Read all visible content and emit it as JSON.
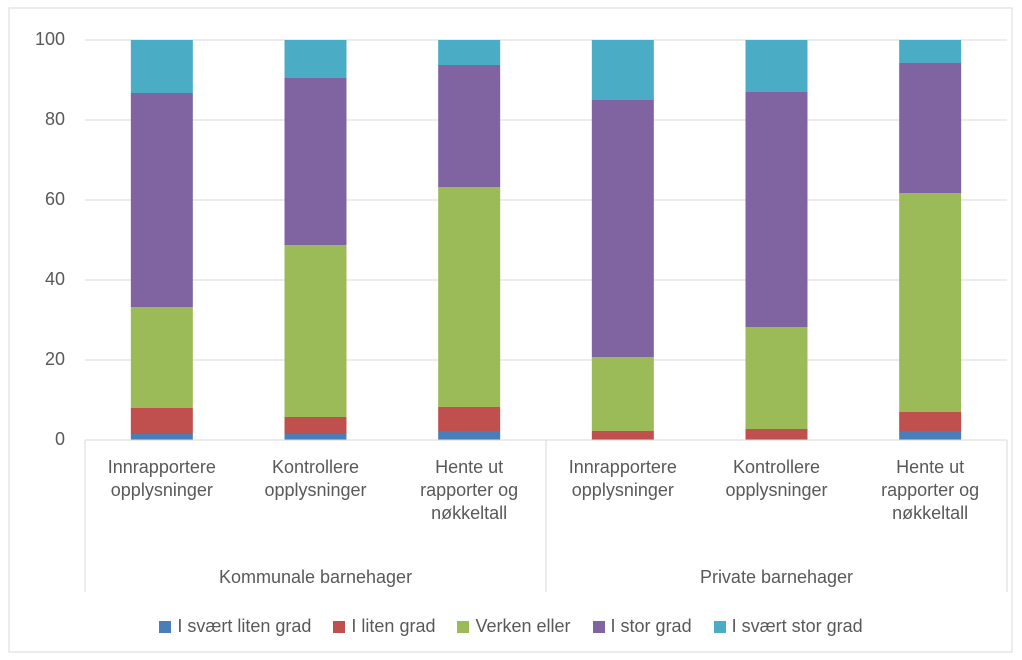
{
  "chart_data": {
    "type": "stacked_bar",
    "categories": [
      "Innrapportere opplysninger",
      "Kontrollere opplysninger",
      "Hente ut rapporter og nøkkeltall",
      "Innrapportere opplysninger",
      "Kontrollere opplysninger",
      "Hente ut rapporter og nøkkeltall"
    ],
    "groups": [
      "Kommunale barnehager",
      "Private barnehager"
    ],
    "series": [
      {
        "name": "I svært liten grad",
        "color": "#4a7ebb",
        "values": [
          1.5,
          1.5,
          2.25,
          0,
          0,
          2.25
        ]
      },
      {
        "name": "I liten grad",
        "color": "#c0504d",
        "values": [
          6.5,
          4.25,
          6,
          2.25,
          2.75,
          4.75
        ]
      },
      {
        "name": "Verken eller",
        "color": "#9bbb59",
        "values": [
          25.25,
          43,
          55,
          18.5,
          25.5,
          54.75
        ]
      },
      {
        "name": "I stor grad",
        "color": "#8064a2",
        "values": [
          53.5,
          41.75,
          30.5,
          64.25,
          58.75,
          32.5
        ]
      },
      {
        "name": "I svært stor grad",
        "color": "#4bacc6",
        "values": [
          13.25,
          9.5,
          6.25,
          15,
          13,
          5.75
        ]
      }
    ],
    "ylim": [
      0,
      100
    ],
    "yticks": [
      0,
      20,
      40,
      60,
      80,
      100
    ],
    "grid": true,
    "legend": "bottom"
  }
}
